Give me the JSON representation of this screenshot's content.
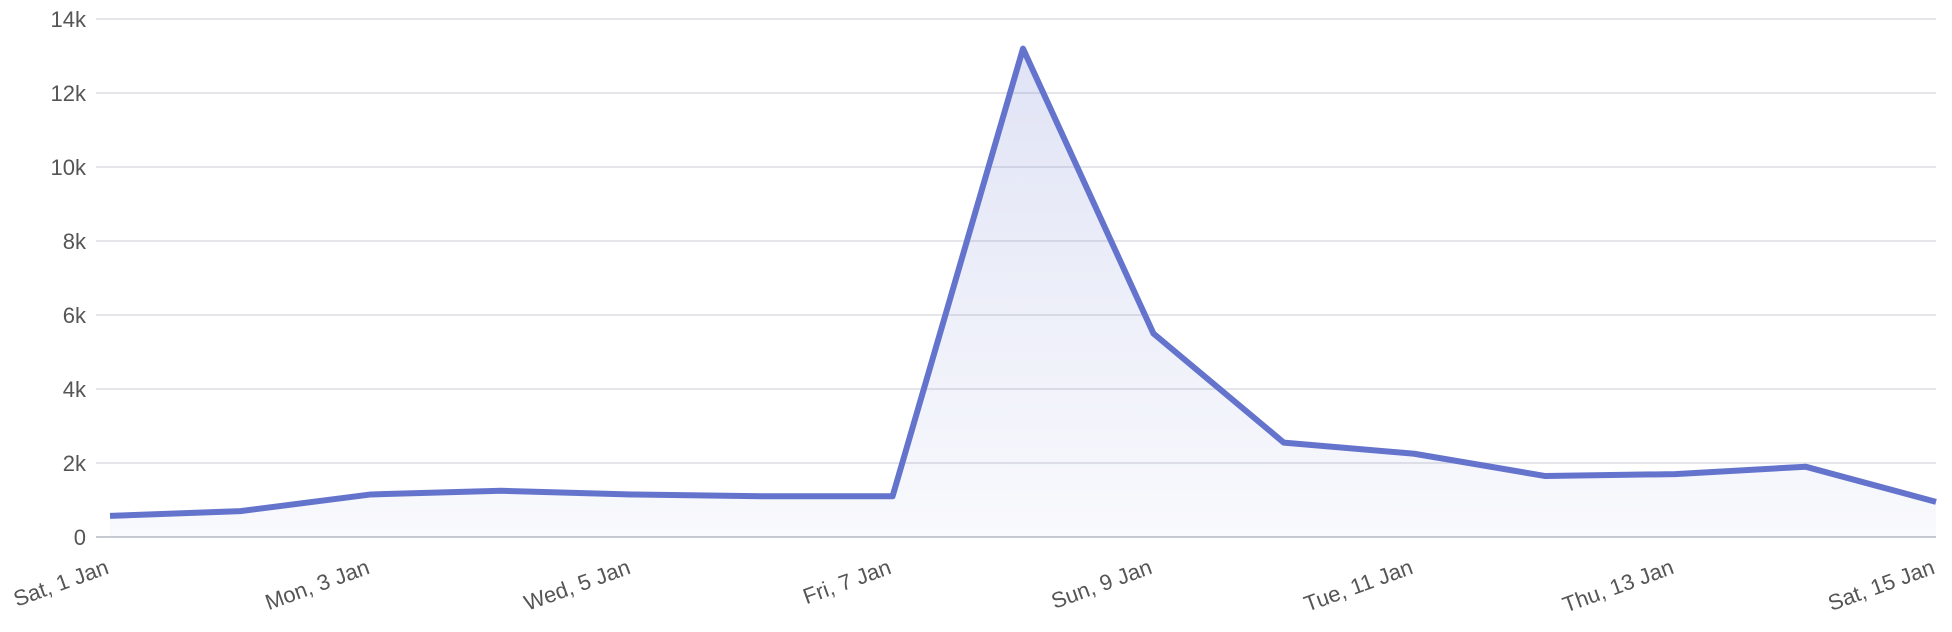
{
  "chart_data": {
    "type": "area",
    "categories": [
      "Sat, 1 Jan",
      null,
      "Mon, 3 Jan",
      null,
      "Wed, 5 Jan",
      null,
      "Fri, 7 Jan",
      null,
      "Sun, 9 Jan",
      null,
      "Tue, 11 Jan",
      null,
      "Thu, 13 Jan",
      null,
      "Sat, 15 Jan"
    ],
    "values": [
      570,
      700,
      1150,
      1250,
      1150,
      1100,
      1100,
      13200,
      5500,
      2550,
      2250,
      1650,
      1700,
      1900,
      950
    ],
    "color": "#6474cc",
    "ylim": [
      0,
      14000
    ],
    "yticks": [
      0,
      {
        "value": 2000,
        "label": "2k"
      },
      {
        "value": 4000,
        "label": "4k"
      },
      {
        "value": 6000,
        "label": "6k"
      },
      {
        "value": 8000,
        "label": "8k"
      },
      {
        "value": 10000,
        "label": "10k"
      },
      {
        "value": 12000,
        "label": "12k"
      },
      {
        "value": 14000,
        "label": "14k"
      }
    ],
    "grid": true
  }
}
